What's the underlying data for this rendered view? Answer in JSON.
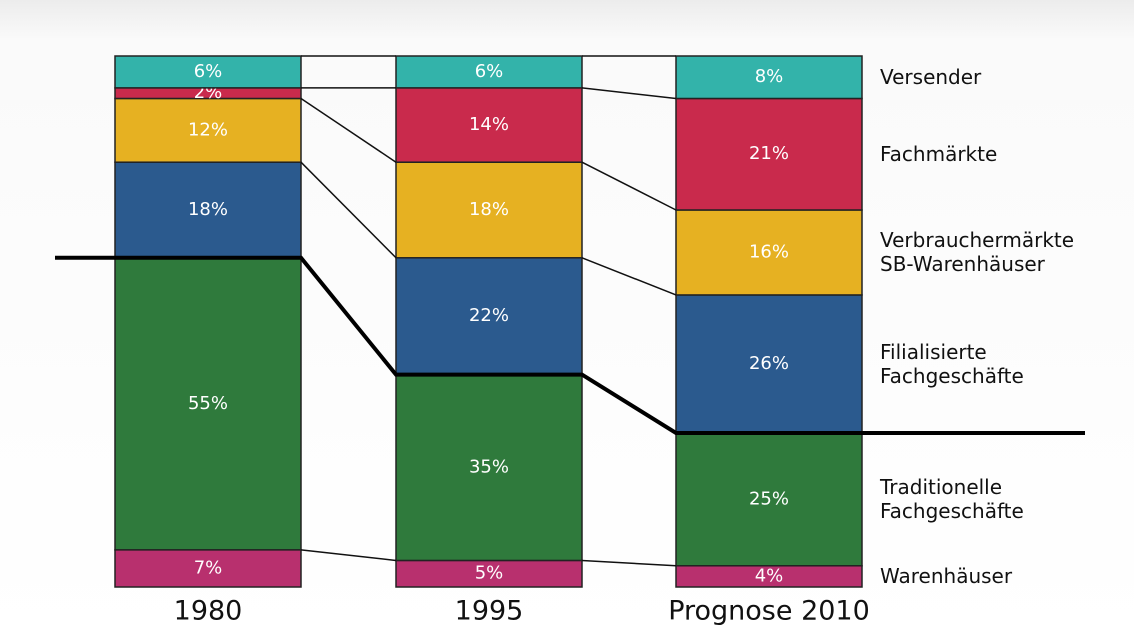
{
  "chart_data": {
    "type": "stacked-bar",
    "categories": [
      "1980",
      "1995",
      "Prognose 2010"
    ],
    "ylim": [
      0,
      100
    ],
    "highlight_boundary_after_series": 1,
    "series": [
      {
        "name": "Warenhäuser",
        "color": "#b8306e",
        "values": [
          7,
          5,
          4
        ],
        "value_labels": [
          "7%",
          "5%",
          "4%"
        ]
      },
      {
        "name": "Traditionelle\nFachgeschäfte",
        "color": "#2f7a3c",
        "values": [
          55,
          35,
          25
        ],
        "value_labels": [
          "55%",
          "35%",
          "25%"
        ]
      },
      {
        "name": "Filialisierte\nFachgeschäfte",
        "color": "#2b5a8e",
        "values": [
          18,
          22,
          26
        ],
        "value_labels": [
          "18%",
          "22%",
          "26%"
        ]
      },
      {
        "name": "Verbrauchermärkte\nSB-Warenhäuser",
        "color": "#e6b122",
        "values": [
          12,
          18,
          16
        ],
        "value_labels": [
          "12%",
          "18%",
          "16%"
        ]
      },
      {
        "name": "Fachmärkte",
        "color": "#c92a4c",
        "values": [
          2,
          14,
          21
        ],
        "value_labels": [
          "2%",
          "14%",
          "21%"
        ]
      },
      {
        "name": "Versender",
        "color": "#33b3aa",
        "values": [
          6,
          6,
          8
        ],
        "value_labels": [
          "6%",
          "6%",
          "8%"
        ]
      }
    ]
  }
}
